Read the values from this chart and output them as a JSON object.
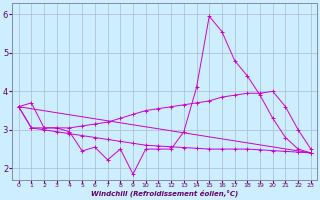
{
  "xlabel": "Windchill (Refroidissement éolien,°C)",
  "bg_color": "#cceeff",
  "grid_color": "#aabbcc",
  "line_color": "#cc00cc",
  "xlim": [
    -0.5,
    23.5
  ],
  "ylim": [
    1.7,
    6.3
  ],
  "yticks": [
    2,
    3,
    4,
    5,
    6
  ],
  "xticks": [
    0,
    1,
    2,
    3,
    4,
    5,
    6,
    7,
    8,
    9,
    10,
    11,
    12,
    13,
    14,
    15,
    16,
    17,
    18,
    19,
    20,
    21,
    22,
    23
  ],
  "series": [
    {
      "x": [
        0,
        1,
        2,
        3,
        4,
        5,
        6,
        7,
        8,
        9,
        10,
        11,
        12,
        13,
        14,
        15,
        16,
        17,
        18,
        19,
        20,
        21,
        22,
        23
      ],
      "y": [
        3.6,
        3.7,
        3.05,
        3.05,
        2.95,
        2.45,
        2.55,
        2.22,
        2.5,
        1.85,
        2.5,
        2.5,
        2.5,
        2.95,
        4.1,
        5.95,
        5.55,
        4.8,
        4.4,
        3.9,
        3.3,
        2.8,
        2.5,
        2.4
      ]
    },
    {
      "x": [
        0,
        1,
        2,
        3,
        4,
        5,
        6,
        7,
        8,
        9,
        10,
        11,
        12,
        13,
        14,
        15,
        16,
        17,
        18,
        19,
        20,
        21,
        22,
        23
      ],
      "y": [
        3.6,
        3.05,
        3.05,
        3.05,
        3.05,
        3.1,
        3.15,
        3.2,
        3.3,
        3.4,
        3.5,
        3.55,
        3.6,
        3.65,
        3.7,
        3.75,
        3.85,
        3.9,
        3.95,
        3.95,
        4.0,
        3.6,
        3.0,
        2.5
      ]
    },
    {
      "x": [
        0,
        23
      ],
      "y": [
        3.6,
        2.4
      ]
    },
    {
      "x": [
        0,
        1,
        2,
        3,
        4,
        5,
        6,
        7,
        8,
        9,
        10,
        11,
        12,
        13,
        14,
        15,
        16,
        17,
        18,
        19,
        20,
        21,
        22,
        23
      ],
      "y": [
        3.6,
        3.05,
        3.0,
        2.95,
        2.9,
        2.85,
        2.8,
        2.75,
        2.7,
        2.65,
        2.6,
        2.58,
        2.56,
        2.54,
        2.52,
        2.5,
        2.5,
        2.5,
        2.5,
        2.48,
        2.46,
        2.44,
        2.42,
        2.4
      ]
    }
  ]
}
